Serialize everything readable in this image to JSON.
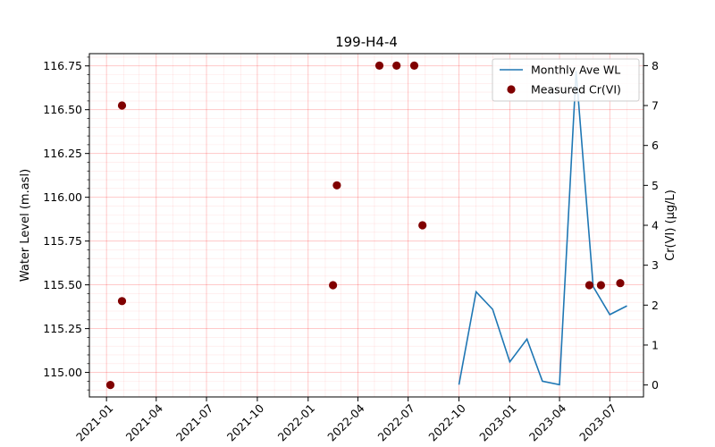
{
  "chart_data": {
    "type": "line",
    "title": "199-H4-4",
    "xlabel": "",
    "ylabel_left": "Water Level (m.asl)",
    "ylabel_right": "Cr(VI) (µg/L)",
    "x_ticks": [
      "2021-01",
      "2021-04",
      "2021-07",
      "2021-10",
      "2022-01",
      "2022-04",
      "2022-07",
      "2022-10",
      "2023-01",
      "2023-04",
      "2023-07"
    ],
    "y_left_ticks": [
      "115.00",
      "115.25",
      "115.50",
      "115.75",
      "116.00",
      "116.25",
      "116.50",
      "116.75"
    ],
    "y_right_ticks": [
      "0",
      "1",
      "2",
      "3",
      "4",
      "5",
      "6",
      "7",
      "8"
    ],
    "x_range": [
      "2020-12-01",
      "2023-08-31"
    ],
    "y_left_range": [
      114.86,
      116.82
    ],
    "y_right_range": [
      -0.3,
      8.3
    ],
    "grid": true,
    "legend_position": "top-right",
    "series": [
      {
        "name": "Monthly Ave WL",
        "axis": "left",
        "color": "#1f77b4",
        "kind": "line",
        "points": [
          [
            "2022-10-01",
            114.93
          ],
          [
            "2022-11-01",
            115.46
          ],
          [
            "2022-12-01",
            115.36
          ],
          [
            "2023-01-01",
            115.06
          ],
          [
            "2023-02-01",
            115.19
          ],
          [
            "2023-03-01",
            114.95
          ],
          [
            "2023-04-01",
            114.93
          ],
          [
            "2023-05-01",
            116.72
          ],
          [
            "2023-06-01",
            115.49
          ],
          [
            "2023-07-01",
            115.33
          ],
          [
            "2023-08-01",
            115.38
          ]
        ]
      },
      {
        "name": "Measured Cr(VI)",
        "axis": "right",
        "color": "#800000",
        "kind": "scatter",
        "points": [
          [
            "2021-01-08",
            0
          ],
          [
            "2021-01-29",
            7
          ],
          [
            "2021-01-29",
            2.1
          ],
          [
            "2022-02-15",
            2.5
          ],
          [
            "2022-02-22",
            5
          ],
          [
            "2022-05-10",
            8
          ],
          [
            "2022-06-10",
            8
          ],
          [
            "2022-07-12",
            8
          ],
          [
            "2022-07-27",
            4
          ],
          [
            "2023-05-25",
            2.5
          ],
          [
            "2023-06-15",
            2.5
          ],
          [
            "2023-07-20",
            2.55
          ]
        ]
      }
    ]
  }
}
